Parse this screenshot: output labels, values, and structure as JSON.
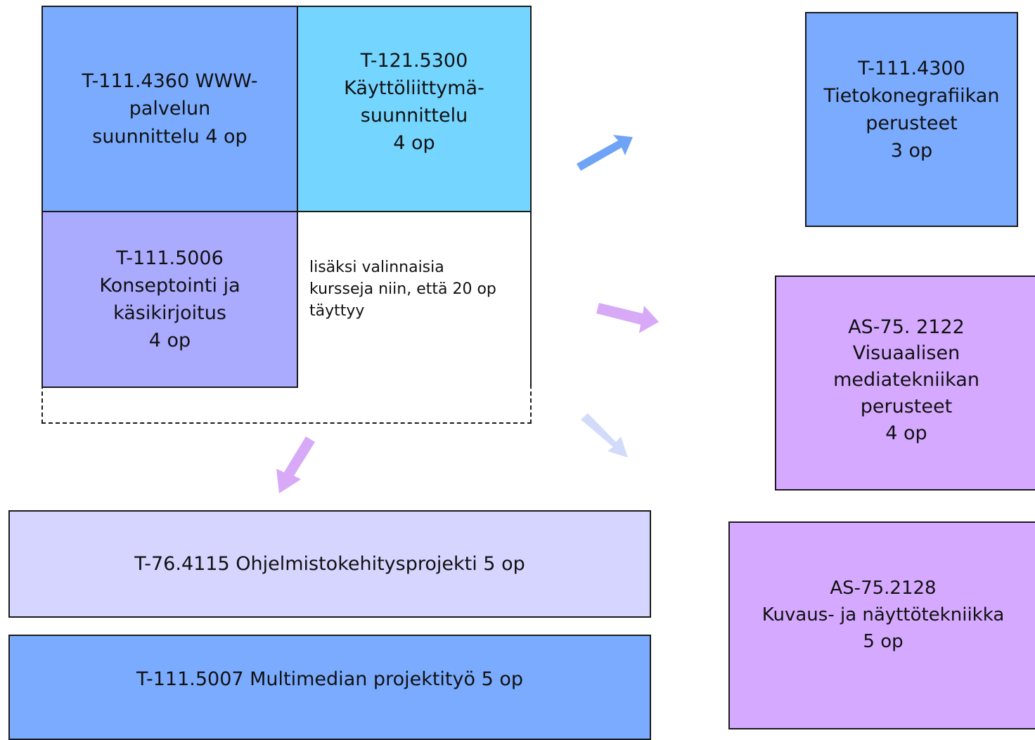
{
  "boxes": {
    "www_palvelun": {
      "lines": [
        "T-111.4360 WWW-",
        "palvelun",
        "suunnittelu 4 op"
      ],
      "color": "#7aabff"
    },
    "kayttoliittyma": {
      "lines": [
        "T-121.5300",
        "Käyttöliittymä-",
        "suunnittelu",
        "4 op"
      ],
      "color": "#74d5ff"
    },
    "konseptointi": {
      "lines": [
        "T-111.5006",
        "Konseptointi ja",
        "käsikirjoitus",
        "4 op"
      ],
      "color": "#aaaaff"
    },
    "note": {
      "lines": [
        "lisäksi valinnaisia",
        "kursseja niin, että 20 op",
        "täyttyy"
      ]
    },
    "tietokonegrafiikan": {
      "lines": [
        "T-111.4300",
        "Tietokonegrafiikan",
        "perusteet",
        "3 op"
      ],
      "color": "#7aabff"
    },
    "visuaalisen": {
      "lines": [
        "AS-75. 2122",
        "Visuaalisen",
        "mediatekniikan",
        "perusteet",
        "4 op"
      ],
      "color": "#d5a9ff"
    },
    "kuvaus": {
      "lines": [
        "AS-75.2128",
        "Kuvaus- ja näyttötekniikka",
        "5 op"
      ],
      "color": "#d5a9ff"
    },
    "ohjelmisto": {
      "text": "T-76.4115 Ohjelmistokehitysprojekti 5 op",
      "color": "#d5d5ff"
    },
    "multimedian": {
      "text": "T-111.5007 Multimedian projektityö 5 op",
      "color": "#7aabff"
    }
  },
  "arrows": {
    "up_right": "#6fa3f5",
    "right": "#d7a9f7",
    "down_right": "#d2dcfa",
    "down_left": "#d7a9f7"
  }
}
